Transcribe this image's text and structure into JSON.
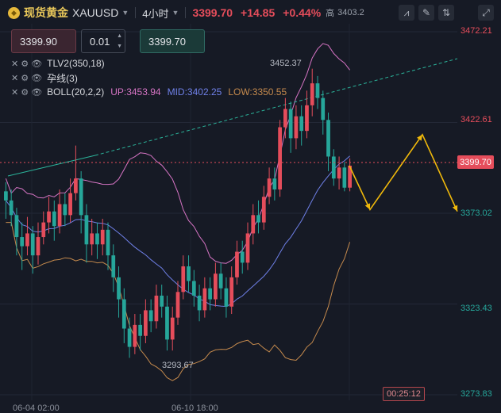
{
  "header": {
    "name": "现货黄金",
    "symbol": "XAUUSD",
    "timeframe": "4小时",
    "price": "3399.70",
    "change": "+14.85",
    "change_pct": "+0.44%",
    "high_label": "高",
    "high_value": "3403.2",
    "icons": [
      "indicators-icon",
      "draw-icon",
      "compare-icon",
      "expand-icon"
    ]
  },
  "order": {
    "sell_price": "3399.90",
    "quantity": "0.01",
    "buy_price": "3399.70"
  },
  "indicators": [
    {
      "label": "TLV2(350,18)"
    },
    {
      "label": "孕线(3)"
    },
    {
      "label": "BOLL(20,2,2)",
      "up": "UP:3453.94",
      "mid": "MID:3402.25",
      "low": "LOW:3350.55"
    }
  ],
  "price_axis": [
    "3472.21",
    "3422.61",
    "3373.02",
    "3323.43",
    "3273.83"
  ],
  "current_price_tag": "3399.70",
  "countdown": "00:25:12",
  "time_axis": [
    "06-04 02:00",
    "06-10 18:00"
  ],
  "annotations": {
    "high": "3452.37",
    "low": "3293.67"
  },
  "colors": {
    "up": "#e54d5b",
    "down": "#26a69a",
    "boll_up": "#d674c4",
    "boll_mid": "#6f80e8",
    "boll_low": "#c58a4d",
    "trend": "#2bb39a",
    "forecast": "#f0b90b"
  },
  "chart_data": {
    "type": "candlestick",
    "yaxis_ticks": [
      3472.21,
      3422.61,
      3373.02,
      3323.43,
      3273.83
    ],
    "ylim": [
      3270,
      3480
    ],
    "candles": [
      [
        3385,
        3380,
        3390,
        3370
      ],
      [
        3380,
        3372,
        3386,
        3366
      ],
      [
        3372,
        3360,
        3376,
        3350
      ],
      [
        3360,
        3355,
        3368,
        3342
      ],
      [
        3355,
        3362,
        3371,
        3350
      ],
      [
        3362,
        3350,
        3366,
        3340
      ],
      [
        3350,
        3360,
        3368,
        3345
      ],
      [
        3360,
        3368,
        3374,
        3356
      ],
      [
        3368,
        3374,
        3382,
        3362
      ],
      [
        3374,
        3366,
        3380,
        3358
      ],
      [
        3366,
        3378,
        3386,
        3362
      ],
      [
        3378,
        3372,
        3384,
        3366
      ],
      [
        3372,
        3384,
        3392,
        3368
      ],
      [
        3384,
        3392,
        3410,
        3380
      ],
      [
        3392,
        3372,
        3396,
        3362
      ],
      [
        3372,
        3356,
        3378,
        3346
      ],
      [
        3356,
        3362,
        3370,
        3350
      ],
      [
        3362,
        3356,
        3368,
        3348
      ],
      [
        3356,
        3364,
        3370,
        3350
      ],
      [
        3364,
        3350,
        3368,
        3342
      ],
      [
        3350,
        3338,
        3356,
        3330
      ],
      [
        3338,
        3326,
        3344,
        3316
      ],
      [
        3326,
        3310,
        3332,
        3302
      ],
      [
        3310,
        3300,
        3316,
        3294
      ],
      [
        3300,
        3312,
        3318,
        3296
      ],
      [
        3312,
        3306,
        3318,
        3298
      ],
      [
        3306,
        3320,
        3326,
        3302
      ],
      [
        3320,
        3314,
        3326,
        3308
      ],
      [
        3314,
        3328,
        3334,
        3310
      ],
      [
        3328,
        3322,
        3334,
        3316
      ],
      [
        3322,
        3304,
        3328,
        3298
      ],
      [
        3304,
        3316,
        3322,
        3298
      ],
      [
        3316,
        3330,
        3336,
        3312
      ],
      [
        3330,
        3344,
        3350,
        3326
      ],
      [
        3344,
        3336,
        3350,
        3330
      ],
      [
        3336,
        3328,
        3342,
        3322
      ],
      [
        3328,
        3320,
        3334,
        3314
      ],
      [
        3320,
        3332,
        3338,
        3316
      ],
      [
        3332,
        3326,
        3338,
        3320
      ],
      [
        3326,
        3340,
        3346,
        3322
      ],
      [
        3340,
        3332,
        3346,
        3326
      ],
      [
        3332,
        3322,
        3338,
        3316
      ],
      [
        3322,
        3338,
        3344,
        3318
      ],
      [
        3338,
        3352,
        3358,
        3334
      ],
      [
        3352,
        3346,
        3358,
        3340
      ],
      [
        3346,
        3362,
        3368,
        3342
      ],
      [
        3362,
        3372,
        3378,
        3356
      ],
      [
        3372,
        3368,
        3380,
        3362
      ],
      [
        3368,
        3382,
        3388,
        3364
      ],
      [
        3382,
        3392,
        3398,
        3378
      ],
      [
        3392,
        3386,
        3398,
        3380
      ],
      [
        3386,
        3420,
        3424,
        3382
      ],
      [
        3420,
        3430,
        3436,
        3414
      ],
      [
        3430,
        3414,
        3434,
        3406
      ],
      [
        3414,
        3426,
        3432,
        3408
      ],
      [
        3426,
        3418,
        3432,
        3410
      ],
      [
        3418,
        3432,
        3440,
        3414
      ],
      [
        3432,
        3444,
        3452,
        3426
      ],
      [
        3444,
        3436,
        3448,
        3430
      ],
      [
        3436,
        3424,
        3440,
        3416
      ],
      [
        3424,
        3404,
        3428,
        3396
      ],
      [
        3404,
        3392,
        3408,
        3388
      ],
      [
        3392,
        3398,
        3404,
        3386
      ],
      [
        3398,
        3387,
        3401,
        3385
      ],
      [
        3387,
        3399,
        3403,
        3385
      ]
    ],
    "forecast_path": [
      [
        0,
        3399
      ],
      [
        1,
        3375
      ],
      [
        2,
        3416
      ],
      [
        3,
        3374
      ]
    ]
  }
}
